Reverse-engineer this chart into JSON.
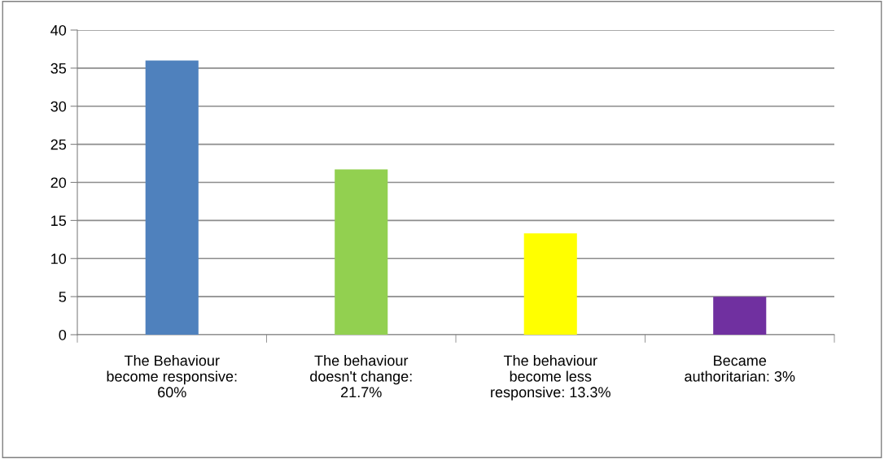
{
  "chart_data": {
    "type": "bar",
    "categories": [
      "The Behaviour become responsive: 60%",
      "The behaviour doesn't change: 21.7%",
      "The behaviour become less responsive: 13.3%",
      "Became authoritarian: 3%"
    ],
    "values": [
      36,
      21.7,
      13.3,
      5
    ],
    "colors": [
      "#4f81bd",
      "#92d050",
      "#ffff00",
      "#7030a0"
    ],
    "ylim": [
      0,
      40
    ],
    "yticks": [
      0,
      5,
      10,
      15,
      20,
      25,
      30,
      35,
      40
    ],
    "grid": "y",
    "legend": false
  }
}
